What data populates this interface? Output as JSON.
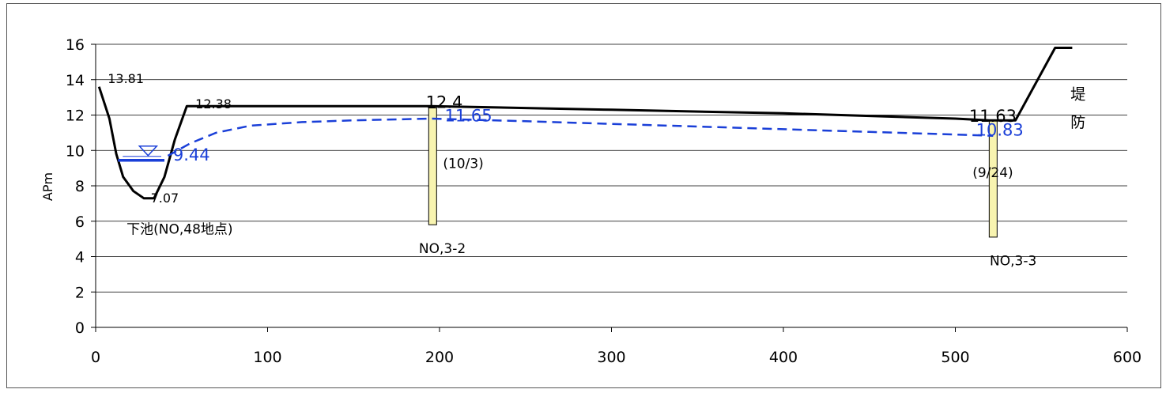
{
  "chart_data": {
    "type": "line",
    "title": "",
    "xlabel": "",
    "ylabel": "APm",
    "xlim": [
      0,
      600
    ],
    "ylim": [
      0,
      16
    ],
    "x_ticks": [
      0,
      100,
      200,
      300,
      400,
      500,
      600
    ],
    "y_ticks": [
      0,
      2,
      4,
      6,
      8,
      10,
      12,
      14,
      16
    ],
    "grid": "horizontal",
    "series": [
      {
        "role": "ground-profile",
        "color": "#000000",
        "style": "solid",
        "x": [
          2,
          8,
          12,
          16,
          22,
          28,
          34,
          40,
          46,
          53,
          100,
          150,
          195,
          250,
          300,
          400,
          450,
          500,
          520,
          535,
          558,
          568
        ],
        "y": [
          13.6,
          11.8,
          9.8,
          8.5,
          7.7,
          7.3,
          7.3,
          8.5,
          10.6,
          12.5,
          12.5,
          12.5,
          12.5,
          12.4,
          12.3,
          12.1,
          11.95,
          11.8,
          11.7,
          11.7,
          15.8,
          15.8
        ]
      },
      {
        "role": "groundwater-level",
        "color": "#1a3fd8",
        "style": "dashed",
        "x": [
          42,
          55,
          70,
          90,
          120,
          150,
          195,
          250,
          300,
          350,
          400,
          450,
          500,
          522
        ],
        "y": [
          9.7,
          10.4,
          11.0,
          11.4,
          11.6,
          11.7,
          11.8,
          11.65,
          11.5,
          11.35,
          11.2,
          11.05,
          10.9,
          10.83
        ]
      }
    ],
    "annotations": [
      {
        "text": "13.81",
        "x": 7,
        "y": 13.81,
        "color": "#000000"
      },
      {
        "text": "12.38",
        "x": 58,
        "y": 12.38,
        "color": "#000000"
      },
      {
        "text": "7.07",
        "x": 32,
        "y": 7.07,
        "color": "#000000"
      },
      {
        "text": "9.44",
        "x": 45,
        "y": 9.44,
        "color": "#1a3fd8"
      },
      {
        "text": "12.4",
        "x": 192,
        "y": 12.4,
        "color": "#000000"
      },
      {
        "text": "11.65",
        "x": 203,
        "y": 11.65,
        "color": "#1a3fd8"
      },
      {
        "text": "(10/3)",
        "x": 202,
        "y": 9.0,
        "color": "#000000"
      },
      {
        "text": "11.63",
        "x": 508,
        "y": 11.63,
        "color": "#000000"
      },
      {
        "text": "10.83",
        "x": 512,
        "y": 10.83,
        "color": "#1a3fd8"
      },
      {
        "text": "(9/24)",
        "x": 510,
        "y": 8.5,
        "color": "#000000"
      },
      {
        "text": "下池(NO,48地点)",
        "x": 18,
        "y": 5.3,
        "color": "#000000"
      },
      {
        "text": "NO,3-2",
        "x": 188,
        "y": 4.2,
        "color": "#000000"
      },
      {
        "text": "NO,3-3",
        "x": 520,
        "y": 3.5,
        "color": "#000000"
      },
      {
        "text": "堤",
        "x": 567,
        "y": 12.9,
        "color": "#000000"
      },
      {
        "text": "防",
        "x": 567,
        "y": 11.3,
        "color": "#000000"
      }
    ],
    "wells": [
      {
        "name": "NO,3-2",
        "x": 196,
        "top": 12.4,
        "bottom": 5.8,
        "color": "#f8f4b0"
      },
      {
        "name": "NO,3-3",
        "x": 522,
        "top": 11.7,
        "bottom": 5.1,
        "color": "#f8f4b0"
      }
    ],
    "pond_water_level": {
      "x1": 13,
      "x2": 40,
      "y": 9.44,
      "color": "#1a3fd8"
    }
  }
}
